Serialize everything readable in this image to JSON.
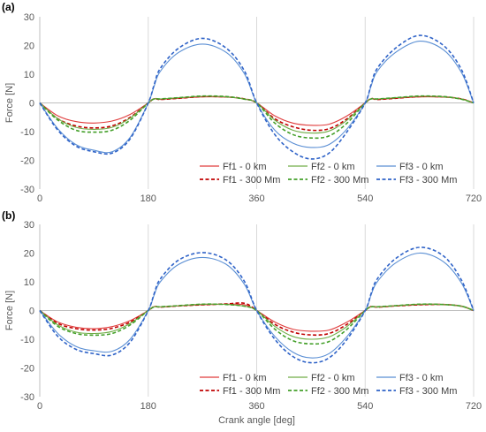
{
  "chart_data": [
    {
      "type": "line",
      "panel_label": "(a)",
      "title": "",
      "xlabel": "",
      "ylabel": "Force [N]",
      "xlim": [
        0,
        720
      ],
      "ylim": [
        -30,
        30
      ],
      "xticks": [
        0,
        180,
        360,
        540,
        720
      ],
      "yticks": [
        -30,
        -20,
        -10,
        0,
        10,
        20,
        30
      ],
      "grid": "vertical only",
      "legend_position": "bottom-right",
      "x": [
        0,
        30,
        60,
        90,
        120,
        150,
        180,
        190,
        200,
        230,
        270,
        310,
        340,
        360,
        390,
        420,
        450,
        480,
        510,
        540,
        550,
        560,
        590,
        630,
        670,
        700,
        720
      ],
      "series": [
        {
          "name": "Ff1 - 0 km",
          "color": "#e03c3c",
          "dash": "solid",
          "values": [
            0,
            -4.5,
            -6.5,
            -7,
            -6.3,
            -4,
            0,
            1.5,
            1.2,
            1.6,
            2.1,
            2.0,
            1.4,
            0,
            -4.5,
            -7,
            -7.8,
            -7.4,
            -4.5,
            0,
            1.5,
            1.2,
            1.6,
            2.1,
            2.0,
            1.4,
            0
          ]
        },
        {
          "name": "Ff1 - 300 Mm",
          "color": "#c00000",
          "dash": "dashed",
          "values": [
            0,
            -5.5,
            -8,
            -8.7,
            -8,
            -5,
            0,
            1.5,
            1.2,
            1.6,
            2.2,
            2.1,
            1.4,
            0,
            -5.5,
            -8.3,
            -9.5,
            -9,
            -5.5,
            0,
            1.5,
            1.2,
            1.6,
            2.2,
            2.1,
            1.4,
            0
          ]
        },
        {
          "name": "Ff2 - 0 km",
          "color": "#70ad47",
          "dash": "solid",
          "values": [
            0,
            -5.5,
            -8.5,
            -9.2,
            -8.5,
            -5.3,
            0,
            1.4,
            1.4,
            1.8,
            2.3,
            2.1,
            1.3,
            0,
            -6,
            -9.5,
            -10.5,
            -9.8,
            -6,
            0,
            1.4,
            1.4,
            1.8,
            2.3,
            2.1,
            1.3,
            0
          ]
        },
        {
          "name": "Ff2 - 300 Mm",
          "color": "#44a02a",
          "dash": "dashed",
          "values": [
            0,
            -6,
            -9.5,
            -10.2,
            -9.5,
            -6,
            0,
            1.4,
            1.4,
            1.8,
            2.4,
            2.2,
            1.3,
            0,
            -7,
            -11,
            -12.2,
            -11.5,
            -7,
            0,
            1.4,
            1.4,
            1.8,
            2.4,
            2.2,
            1.3,
            0
          ]
        },
        {
          "name": "Ff3 - 0 km",
          "color": "#5b8fd4",
          "dash": "solid",
          "values": [
            0,
            -9,
            -14.5,
            -16.5,
            -17,
            -12,
            0,
            6,
            11,
            17.5,
            20.5,
            17.5,
            10,
            0,
            -9.5,
            -14,
            -15.5,
            -14.5,
            -9,
            0,
            6,
            11,
            17.5,
            21.5,
            18.5,
            10.5,
            0
          ]
        },
        {
          "name": "Ff3 - 300 Mm",
          "color": "#2f63c8",
          "dash": "dashed",
          "values": [
            0,
            -9.5,
            -15,
            -17,
            -17.5,
            -12.5,
            0,
            6.5,
            12,
            19,
            22.5,
            19,
            11,
            0,
            -11,
            -17,
            -19.5,
            -17.5,
            -10,
            0,
            6.5,
            12,
            19,
            23.5,
            20,
            11.5,
            0
          ]
        }
      ]
    },
    {
      "type": "line",
      "panel_label": "(b)",
      "title": "",
      "xlabel": "Crank angle [deg]",
      "ylabel": "Force [N]",
      "xlim": [
        0,
        720
      ],
      "ylim": [
        -30,
        30
      ],
      "xticks": [
        0,
        180,
        360,
        540,
        720
      ],
      "yticks": [
        -30,
        -20,
        -10,
        0,
        10,
        20,
        30
      ],
      "grid": "vertical only",
      "legend_position": "bottom-right",
      "x": [
        0,
        30,
        60,
        90,
        120,
        150,
        180,
        190,
        200,
        230,
        270,
        310,
        340,
        360,
        390,
        420,
        450,
        480,
        510,
        540,
        550,
        560,
        590,
        630,
        670,
        700,
        720
      ],
      "series": [
        {
          "name": "Ff1 - 0 km",
          "color": "#e03c3c",
          "dash": "solid",
          "values": [
            0,
            -4,
            -5.8,
            -6.3,
            -5.6,
            -3.5,
            0,
            1.4,
            1.2,
            1.6,
            2.0,
            2.2,
            2.0,
            0,
            -4,
            -6.5,
            -7.2,
            -6.8,
            -4,
            0,
            1.4,
            1.2,
            1.6,
            2.0,
            2.1,
            1.5,
            0
          ]
        },
        {
          "name": "Ff1 - 300 Mm",
          "color": "#c00000",
          "dash": "dashed",
          "values": [
            0,
            -4.5,
            -6.3,
            -6.8,
            -6.2,
            -4,
            0,
            1.4,
            1.2,
            1.6,
            2.0,
            2.3,
            2.5,
            0,
            -4.8,
            -7.5,
            -8.5,
            -8,
            -4.8,
            0,
            1.4,
            1.2,
            1.6,
            2.0,
            2.1,
            1.5,
            0
          ]
        },
        {
          "name": "Ff2 - 0 km",
          "color": "#70ad47",
          "dash": "solid",
          "values": [
            0,
            -5,
            -7.5,
            -8,
            -7.3,
            -4.5,
            0,
            1.3,
            1.3,
            1.7,
            2.2,
            2.1,
            1.5,
            0,
            -5.5,
            -9,
            -10,
            -9.2,
            -5.5,
            0,
            1.3,
            1.3,
            1.7,
            2.2,
            2.1,
            1.5,
            0
          ]
        },
        {
          "name": "Ff2 - 300 Mm",
          "color": "#44a02a",
          "dash": "dashed",
          "values": [
            0,
            -5.5,
            -8,
            -8.6,
            -8,
            -5,
            0,
            1.3,
            1.3,
            1.7,
            2.2,
            2.1,
            1.5,
            0,
            -6.5,
            -10.5,
            -11.6,
            -10.8,
            -6.5,
            0,
            1.3,
            1.3,
            1.7,
            2.2,
            2.1,
            1.5,
            0
          ]
        },
        {
          "name": "Ff3 - 0 km",
          "color": "#5b8fd4",
          "dash": "solid",
          "values": [
            0,
            -8,
            -12.5,
            -14,
            -14.2,
            -10,
            0,
            5.5,
            10,
            16,
            18.5,
            16,
            9,
            0,
            -9,
            -14.5,
            -16.5,
            -15,
            -9,
            0,
            5.5,
            10,
            16.5,
            20,
            17,
            9.5,
            0
          ]
        },
        {
          "name": "Ff3 - 300 Mm",
          "color": "#2f63c8",
          "dash": "dashed",
          "values": [
            0,
            -9,
            -13.5,
            -15,
            -15.5,
            -11,
            0,
            6,
            11,
            17.5,
            20.2,
            17.5,
            10,
            0,
            -10,
            -16,
            -18.2,
            -16.5,
            -10,
            0,
            6,
            11,
            18,
            22,
            19,
            10.5,
            0
          ]
        }
      ]
    }
  ]
}
